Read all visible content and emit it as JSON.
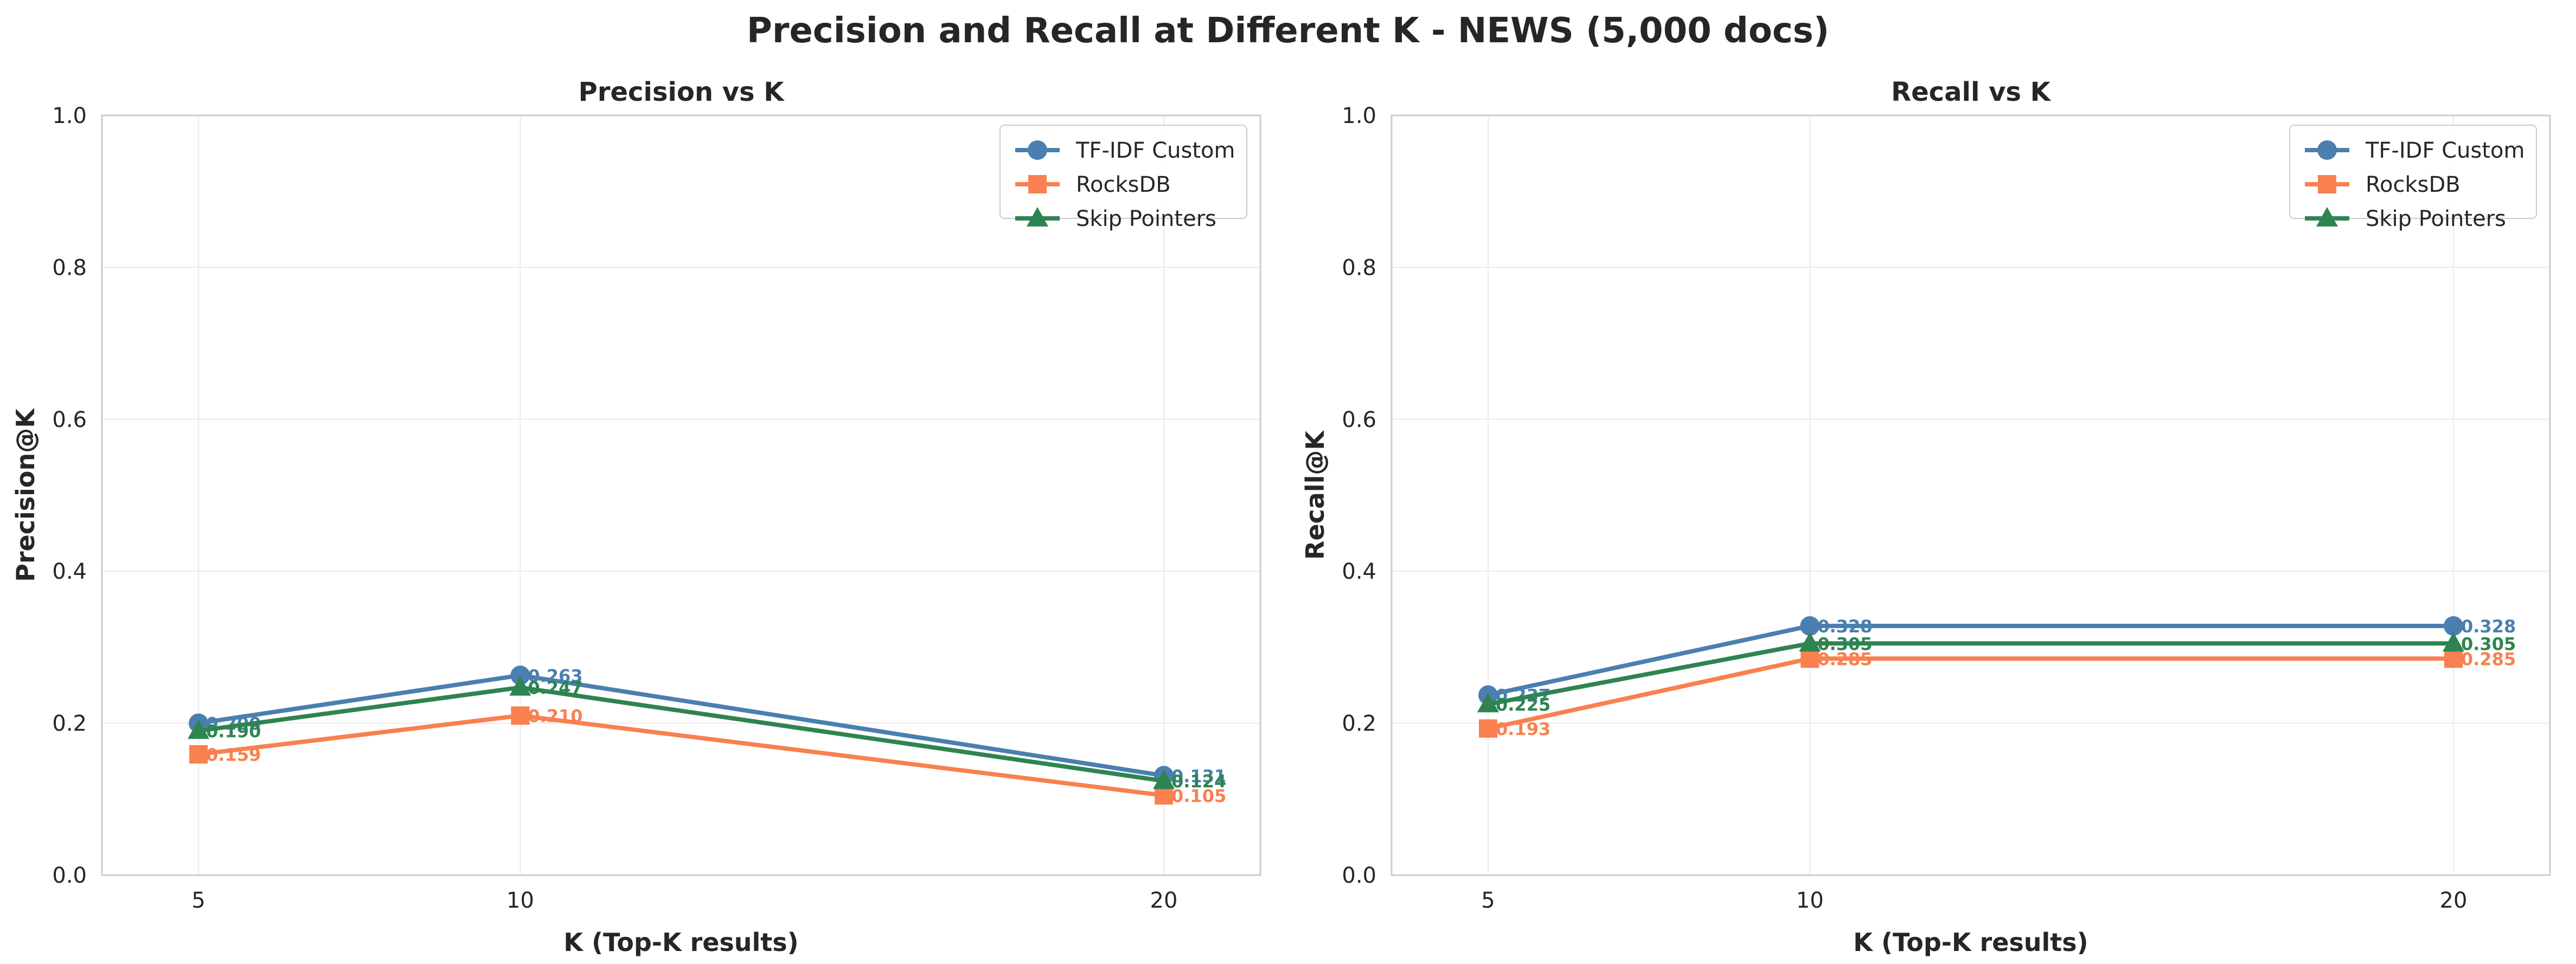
{
  "title": "Precision and Recall at Different K - NEWS (5,000 docs)",
  "colors": {
    "tfidf": "#4a7fb0",
    "rocksdb": "#f9804f",
    "skip": "#2e8450",
    "grid": "#ebebeb",
    "spine": "#cccccc"
  },
  "chart_data": [
    {
      "type": "line",
      "title": "Precision vs K",
      "xlabel": "K (Top-K results)",
      "ylabel": "Precision@K",
      "x": [
        5,
        10,
        20
      ],
      "xticks": [
        "5",
        "10",
        "20"
      ],
      "xlim": [
        3.5,
        21.5
      ],
      "ylim": [
        0,
        1
      ],
      "yticks": [
        "0.0",
        "0.2",
        "0.4",
        "0.6",
        "0.8",
        "1.0"
      ],
      "grid": true,
      "legend_position": "top-right",
      "series": [
        {
          "name": "TF-IDF Custom",
          "color": "#4a7fb0",
          "marker": "circle",
          "values": [
            0.2,
            0.263,
            0.131
          ],
          "labels": [
            "0.200",
            "0.263",
            "0.131"
          ]
        },
        {
          "name": "RocksDB",
          "color": "#f9804f",
          "marker": "square",
          "values": [
            0.159,
            0.21,
            0.105
          ],
          "labels": [
            "0.159",
            "0.210",
            "0.105"
          ]
        },
        {
          "name": "Skip Pointers",
          "color": "#2e8450",
          "marker": "triangle",
          "values": [
            0.19,
            0.247,
            0.124
          ],
          "labels": [
            "0.190",
            "0.247",
            "0.124"
          ]
        }
      ]
    },
    {
      "type": "line",
      "title": "Recall vs K",
      "xlabel": "K (Top-K results)",
      "ylabel": "Recall@K",
      "x": [
        5,
        10,
        20
      ],
      "xticks": [
        "5",
        "10",
        "20"
      ],
      "xlim": [
        3.5,
        21.5
      ],
      "ylim": [
        0,
        1
      ],
      "yticks": [
        "0.0",
        "0.2",
        "0.4",
        "0.6",
        "0.8",
        "1.0"
      ],
      "grid": true,
      "legend_position": "top-right",
      "series": [
        {
          "name": "TF-IDF Custom",
          "color": "#4a7fb0",
          "marker": "circle",
          "values": [
            0.237,
            0.328,
            0.328
          ],
          "labels": [
            "0.237",
            "0.328",
            "0.328"
          ]
        },
        {
          "name": "RocksDB",
          "color": "#f9804f",
          "marker": "square",
          "values": [
            0.193,
            0.285,
            0.285
          ],
          "labels": [
            "0.193",
            "0.285",
            "0.285"
          ]
        },
        {
          "name": "Skip Pointers",
          "color": "#2e8450",
          "marker": "triangle",
          "values": [
            0.225,
            0.305,
            0.305
          ],
          "labels": [
            "0.225",
            "0.305",
            "0.305"
          ]
        }
      ]
    }
  ]
}
